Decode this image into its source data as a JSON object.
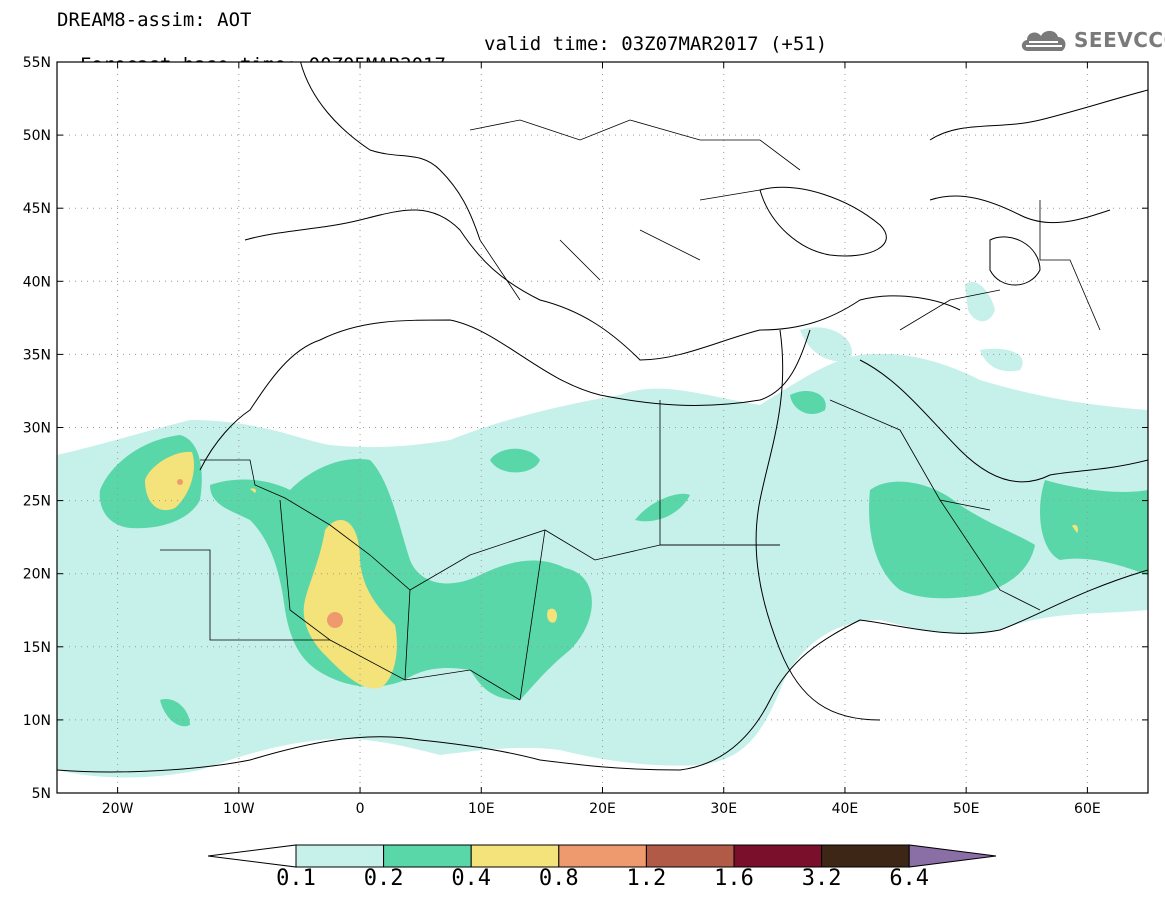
{
  "title": {
    "line1": "DREAM8-assim: AOT",
    "line2_base": "Forecast base time: 00Z05MAR2017",
    "line2_valid": "valid time: 03Z07MAR2017 (+51)"
  },
  "logo": {
    "icon": "cloud-logo-icon",
    "text": "SEEVCCC"
  },
  "map": {
    "lat_labels": [
      "55N",
      "50N",
      "45N",
      "40N",
      "35N",
      "30N",
      "25N",
      "20N",
      "15N",
      "10N",
      "5N"
    ],
    "lon_labels": [
      "20W",
      "10W",
      "0",
      "10E",
      "20E",
      "30E",
      "40E",
      "50E",
      "60E"
    ],
    "lat_range": [
      5,
      55
    ],
    "lon_range": [
      -25,
      65
    ],
    "grid": "dotted"
  },
  "colorbar": {
    "levels": [
      "0.1",
      "0.2",
      "0.4",
      "0.8",
      "1.2",
      "1.6",
      "3.2",
      "6.4"
    ],
    "colors": [
      "#ffffff",
      "#c6f0ea",
      "#5ad7a8",
      "#f4e27a",
      "#ef9a6e",
      "#b25a48",
      "#7a0f2c",
      "#3e2617",
      "#8a6fa6"
    ]
  }
}
